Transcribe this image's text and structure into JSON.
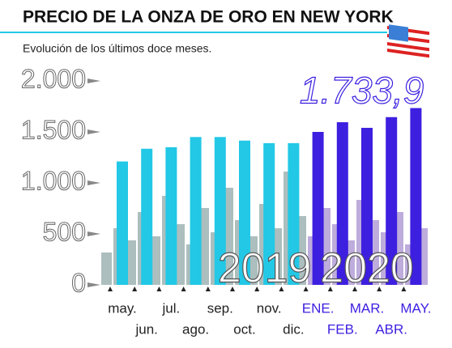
{
  "chart_data": {
    "type": "bar",
    "title": "PRECIO DE LA ONZA DE ORO EN NEW YORK",
    "subtitle": "Evolución de los últimos doce meses.",
    "categories": [
      "may.",
      "jun.",
      "jul.",
      "ago.",
      "sep.",
      "oct.",
      "nov.",
      "dic.",
      "ENE.",
      "FEB.",
      "MAR.",
      "ABR.",
      "MAY."
    ],
    "series": [
      {
        "name": "2019",
        "color": "#22c8e6",
        "values": [
          1210,
          1335,
          1350,
          1450,
          1450,
          1415,
          1390,
          1390,
          null,
          null,
          null,
          null,
          null
        ]
      },
      {
        "name": "2020",
        "color": "#3d1fe0",
        "values": [
          null,
          null,
          null,
          null,
          null,
          null,
          null,
          null,
          1500,
          1595,
          1540,
          1645,
          1733.9
        ],
        "value_labels": [
          null,
          null,
          null,
          null,
          null,
          null,
          null,
          null,
          null,
          null,
          null,
          null,
          "1.733,9"
        ]
      }
    ],
    "ylim": [
      0,
      2000
    ],
    "yticks": [
      0,
      500,
      {
        "value": 1000,
        "label": "1.000"
      },
      {
        "value": 1500,
        "label": "1.500"
      },
      {
        "value": 2000,
        "label": "2.000"
      }
    ]
  }
}
